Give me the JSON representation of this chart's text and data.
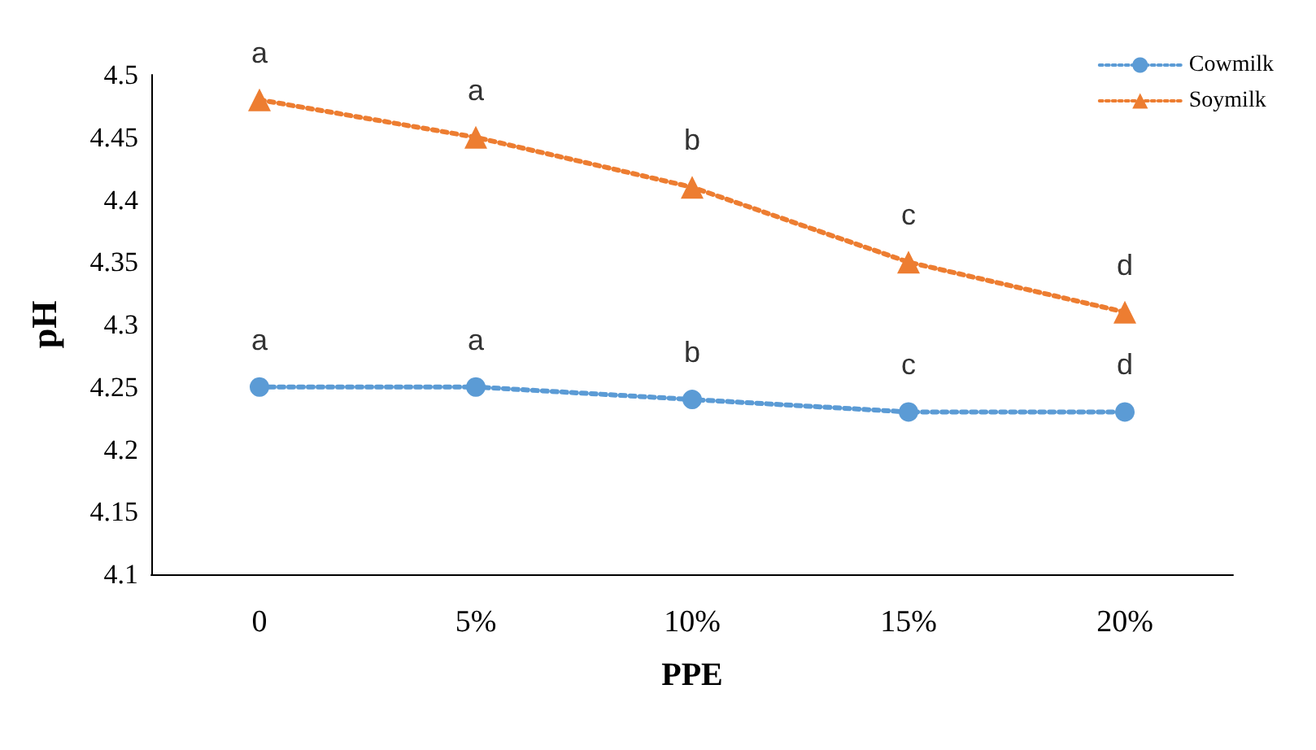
{
  "chart_data": {
    "type": "line",
    "xlabel": "PPE",
    "ylabel": "pH",
    "categories": [
      "0",
      "5%",
      "10%",
      "15%",
      "20%"
    ],
    "series": [
      {
        "name": "Cowmilk",
        "color": "#5b9bd5",
        "marker": "circle",
        "values": [
          4.25,
          4.25,
          4.24,
          4.23,
          4.23
        ]
      },
      {
        "name": "Soymilk",
        "color": "#ed7d31",
        "marker": "triangle",
        "values": [
          4.48,
          4.45,
          4.41,
          4.35,
          4.31
        ]
      }
    ],
    "ylim": [
      4.1,
      4.5
    ],
    "yticks": [
      4.1,
      4.15,
      4.2,
      4.25,
      4.3,
      4.35,
      4.4,
      4.45,
      4.5
    ],
    "grid": false,
    "legend": "top right",
    "line_style": "dotted",
    "annotations": [
      {
        "text": "a",
        "x": "0",
        "y": 4.25
      },
      {
        "text": "a",
        "x": "5%",
        "y": 4.25
      },
      {
        "text": "b",
        "x": "10%",
        "y": 4.24
      },
      {
        "text": "c",
        "x": "15%",
        "y": 4.23
      },
      {
        "text": "d",
        "x": "20%",
        "y": 4.23
      },
      {
        "text": "a",
        "x": "0",
        "y": 4.48
      },
      {
        "text": "a",
        "x": "5%",
        "y": 4.45
      },
      {
        "text": "b",
        "x": "10%",
        "y": 4.41
      },
      {
        "text": "c",
        "x": "15%",
        "y": 4.35
      },
      {
        "text": "d",
        "x": "20%",
        "y": 4.31
      }
    ]
  }
}
